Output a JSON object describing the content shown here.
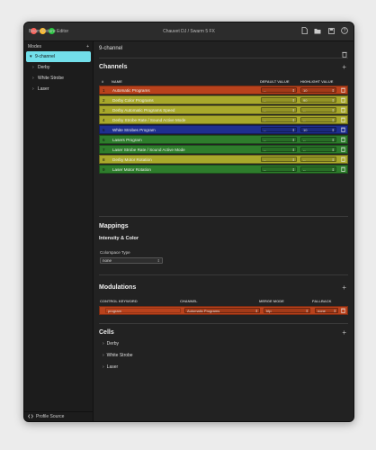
{
  "window": {
    "app_title": "Beam Fixture Editor",
    "doc_title": "Chauvet DJ / Swarm 5 FX"
  },
  "toolbar": [
    "new-file-icon",
    "open-folder-icon",
    "save-icon",
    "help-icon"
  ],
  "sidebar": {
    "header": "Modes",
    "add": "+",
    "items": [
      {
        "label": "9-channel",
        "selected": true
      },
      {
        "label": "Derby",
        "selected": false
      },
      {
        "label": "White Strobe",
        "selected": false
      },
      {
        "label": "Laser",
        "selected": false
      }
    ],
    "footer": "Profile Source"
  },
  "mode": {
    "name": "9-channel"
  },
  "channels": {
    "title": "Channels",
    "headers": {
      "num": "#",
      "name": "NAME",
      "default": "DEFAULT VALUE",
      "highlight": "HIGHLIGHT VALUE"
    },
    "rows": [
      {
        "num": "1",
        "name": "Automatic Programs",
        "default": "--",
        "highlight": "10",
        "color": "#b9421c"
      },
      {
        "num": "2",
        "name": "Derby Color Programs",
        "default": "--",
        "highlight": "90",
        "color": "#a8a82b"
      },
      {
        "num": "3",
        "name": "Derby Automatic Programs Speed",
        "default": "--",
        "highlight": "--",
        "color": "#a8a82b"
      },
      {
        "num": "4",
        "name": "Derby Strobe Rate / Sound Active Mode",
        "default": "--",
        "highlight": "--",
        "color": "#a8a82b"
      },
      {
        "num": "5",
        "name": "White Strobes Program",
        "default": "--",
        "highlight": "10",
        "color": "#1f2f8f"
      },
      {
        "num": "6",
        "name": "Lasers Program",
        "default": "--",
        "highlight": "--",
        "color": "#2e7d2c"
      },
      {
        "num": "7",
        "name": "Laser Strobe Rate / Sound Active Mode",
        "default": "--",
        "highlight": "--",
        "color": "#2e7d2c"
      },
      {
        "num": "8",
        "name": "Derby Motor Rotation",
        "default": "--",
        "highlight": "--",
        "color": "#a8a82b"
      },
      {
        "num": "9",
        "name": "Laser Motor Rotation",
        "default": "--",
        "highlight": "--",
        "color": "#2e7d2c"
      }
    ]
  },
  "mappings": {
    "title": "Mappings",
    "subtitle": "Intensity & Color",
    "colorspace_label": "Colorspace Type",
    "colorspace_value": "none"
  },
  "modulations": {
    "title": "Modulations",
    "headers": {
      "keyword": "CONTROL KEYWORD",
      "channel": "CHANNEL",
      "merge": "MERGE MODE",
      "fallback": "FALLBACK"
    },
    "rows": [
      {
        "keyword": "program",
        "channel": "Automatic Programs",
        "merge": "htp",
        "fallback": "none",
        "color": "#b9421c"
      }
    ]
  },
  "cells": {
    "title": "Cells",
    "items": [
      "Derby",
      "White Strobe",
      "Laser"
    ]
  }
}
